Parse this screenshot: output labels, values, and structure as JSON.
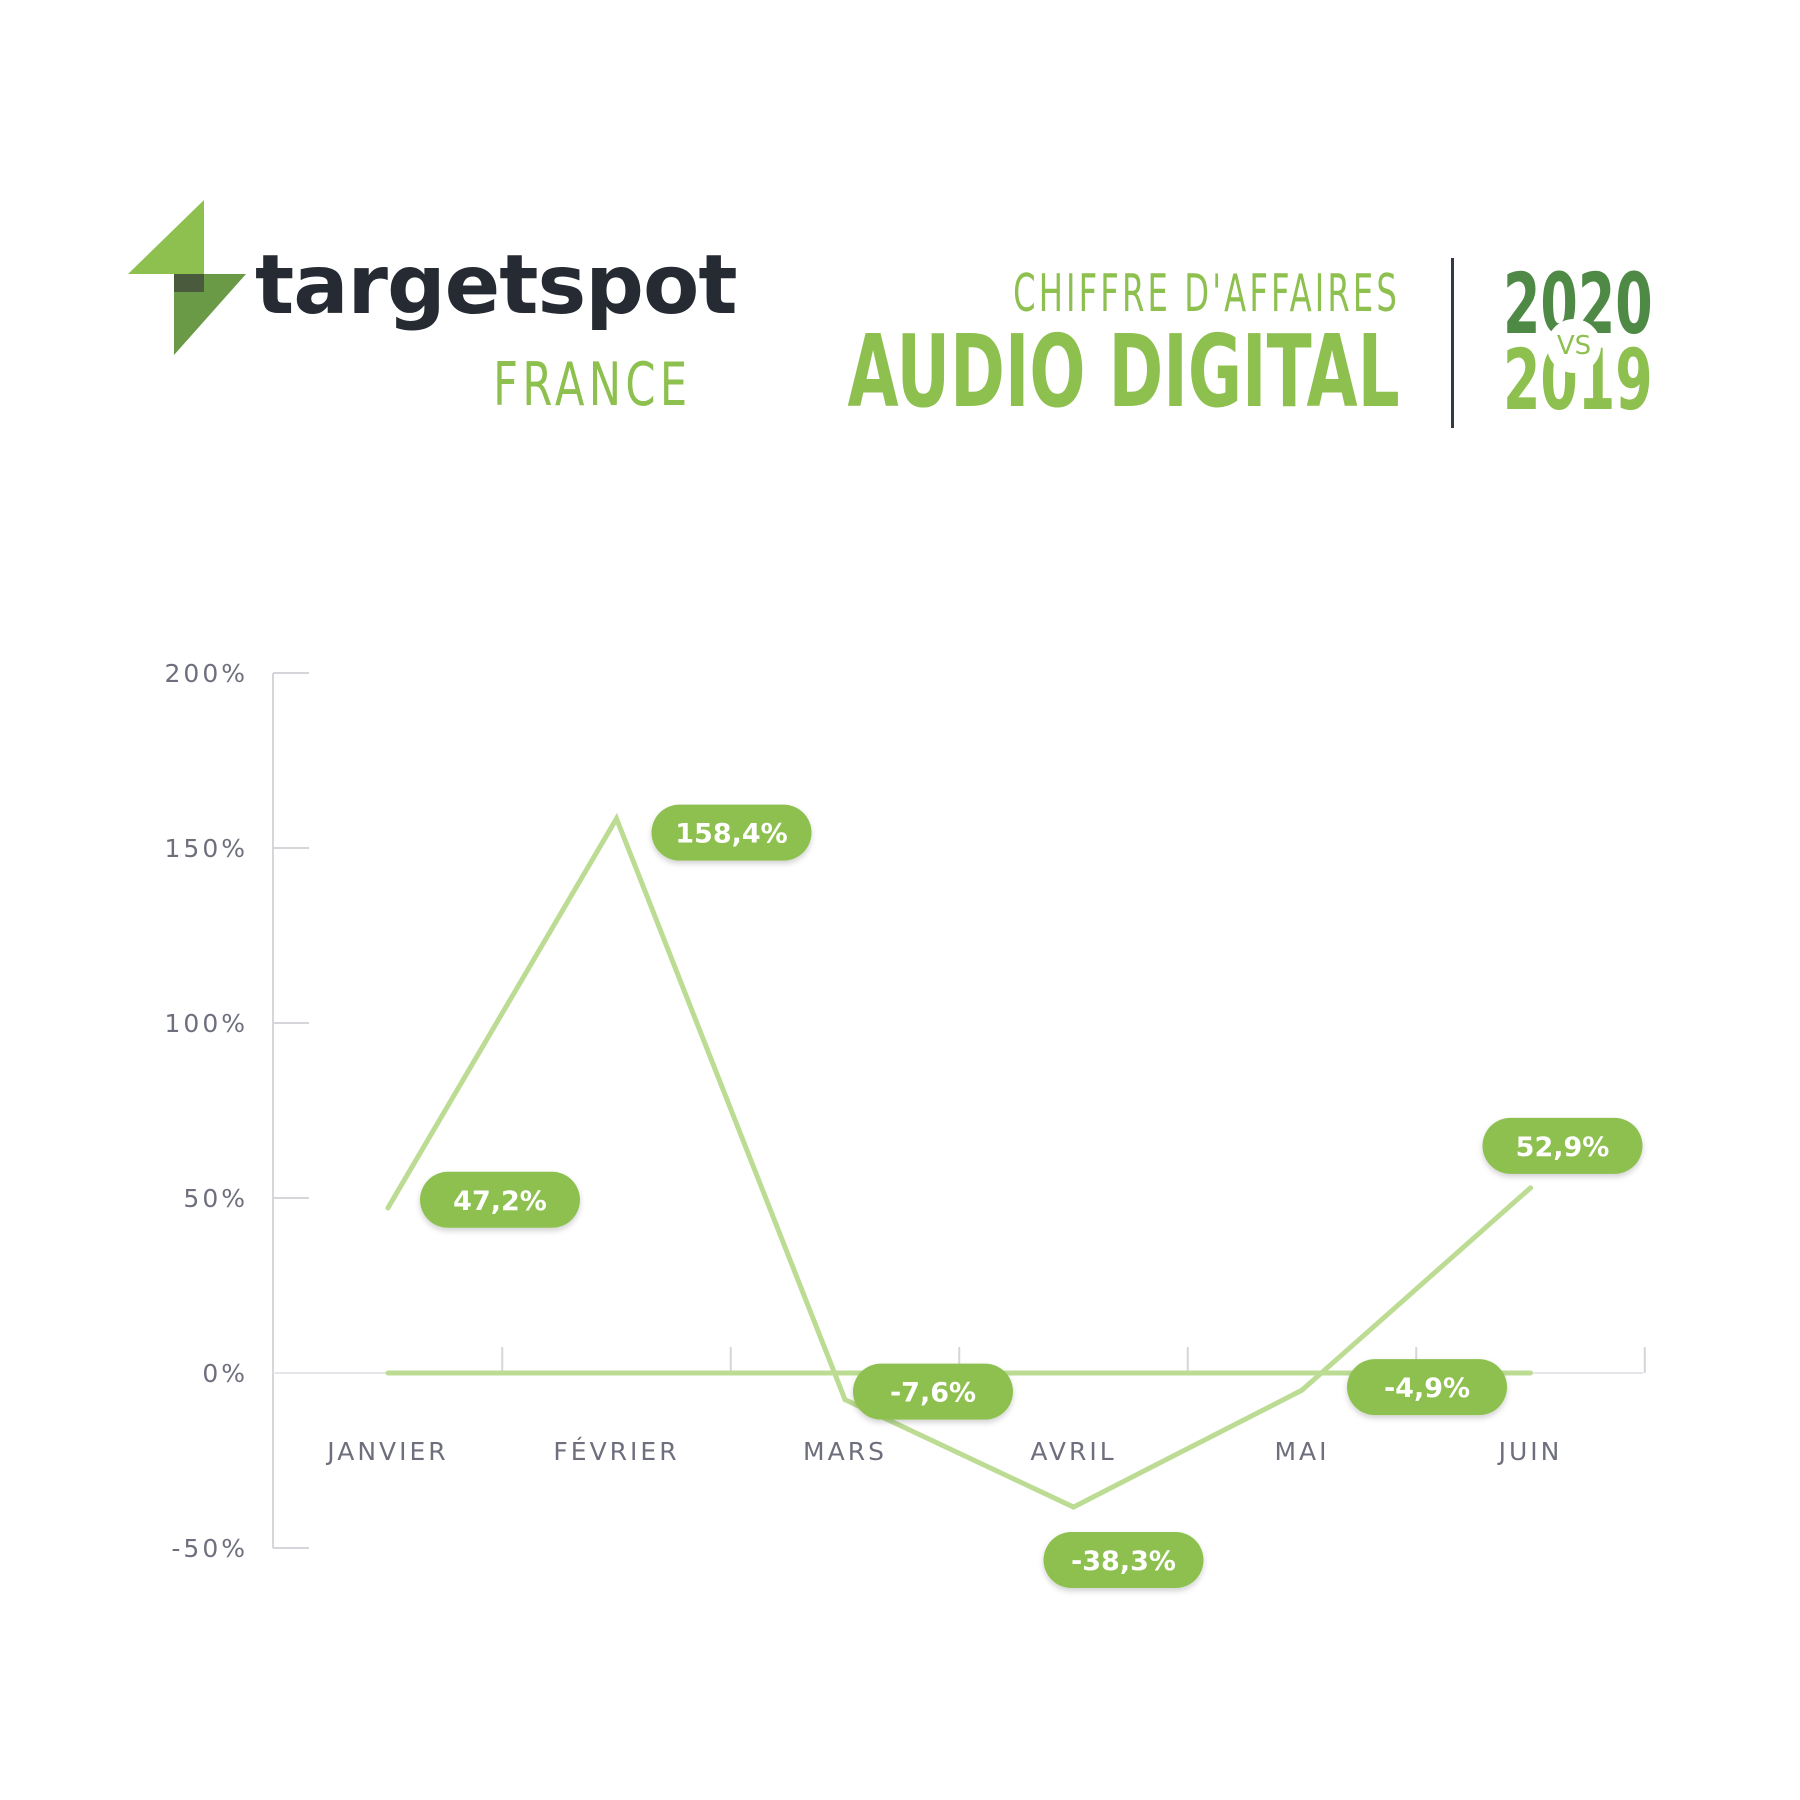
{
  "brand": {
    "name": "targetspot",
    "country": "FRANCE"
  },
  "title": {
    "subtitle": "CHIFFRE D'AFFAIRES",
    "main": "AUDIO DIGITAL",
    "year_current": "2020",
    "vs": "VS",
    "year_previous": "2019"
  },
  "colors": {
    "brand_green": "#8dc04f",
    "dark_green": "#4e8a45",
    "line_green": "#bcdc94",
    "axis_gray": "#d6d6da",
    "label_gray": "#6e6f7d"
  },
  "chart_data": {
    "type": "line",
    "categories": [
      "JANVIER",
      "FÉVRIER",
      "MARS",
      "AVRIL",
      "MAI",
      "JUIN"
    ],
    "series": [
      {
        "values": [
          47.2,
          158.4,
          -7.6,
          -38.3,
          -4.9,
          52.9
        ],
        "labels": [
          "47,2%",
          "158,4%",
          "-7,6%",
          "-38,3%",
          "-4,9%",
          "52,9%"
        ]
      }
    ],
    "baseline": 0,
    "ylim": [
      -50,
      200
    ],
    "yticks": [
      200,
      150,
      100,
      50,
      0,
      -50
    ],
    "ytick_labels": [
      "200%",
      "150%",
      "100%",
      "50%",
      "0%",
      "-50%"
    ],
    "xlabel": "",
    "ylabel": "",
    "grid": false,
    "legend": "none"
  }
}
